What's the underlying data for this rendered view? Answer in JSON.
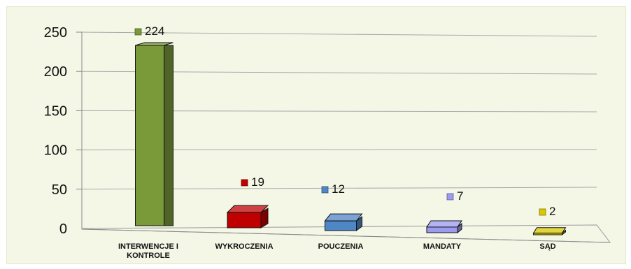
{
  "chart_data": {
    "type": "bar",
    "categories": [
      "INTERWENCJE I KONTROLE",
      "WYKROCZENIA",
      "POUCZENIA",
      "MANDATY",
      "SĄD"
    ],
    "category_label_lines": [
      [
        "INTERWENCJE I",
        "KONTROLE"
      ],
      [
        "WYKROCZENIA"
      ],
      [
        "POUCZENIA"
      ],
      [
        "MANDATY"
      ],
      [
        "SĄD"
      ]
    ],
    "values": [
      224,
      19,
      12,
      7,
      2
    ],
    "value_labels": [
      "224",
      "19",
      "12",
      "7",
      "2"
    ],
    "colors": [
      "#7a9a3a",
      "#c00000",
      "#4f86c6",
      "#9b9bef",
      "#d8c800"
    ],
    "ylim": [
      0,
      250
    ],
    "yticks": [
      0,
      50,
      100,
      150,
      200,
      250
    ],
    "ytick_labels": [
      "0",
      "50",
      "100",
      "150",
      "200",
      "250"
    ],
    "grid": true,
    "legend": "none",
    "title": "",
    "xlabel": "",
    "ylabel": ""
  }
}
